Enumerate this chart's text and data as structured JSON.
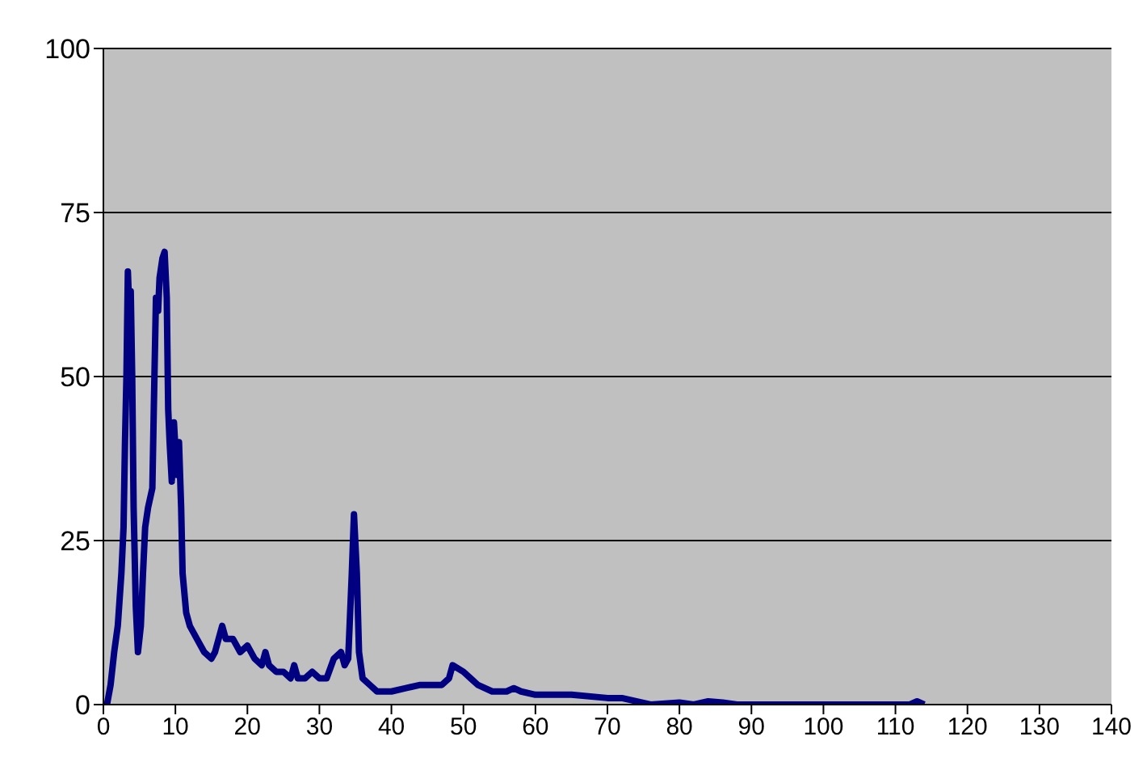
{
  "chart_data": {
    "type": "line",
    "x": [
      0.5,
      1,
      1.5,
      2,
      2.5,
      2.8,
      3,
      3.2,
      3.4,
      3.6,
      3.8,
      4,
      4.2,
      4.5,
      4.8,
      5.2,
      5.5,
      5.8,
      6.2,
      6.8,
      7,
      7.3,
      7.6,
      7.8,
      8.2,
      8.5,
      8.8,
      9,
      9.2,
      9.5,
      9.8,
      10.2,
      10.5,
      10.8,
      11,
      11.5,
      12,
      13,
      14,
      15,
      15.5,
      16,
      16.5,
      17,
      18,
      19,
      20,
      21,
      22,
      22.5,
      23,
      24,
      25,
      26,
      26.5,
      27,
      28,
      29,
      30,
      31,
      32,
      33,
      33.5,
      34,
      34.5,
      34.8,
      35.2,
      35.5,
      36,
      37,
      38,
      40,
      42,
      44,
      46,
      47,
      48,
      48.5,
      50,
      51,
      52,
      54,
      56,
      57,
      58,
      60,
      65,
      70,
      72,
      74,
      76,
      80,
      82,
      84,
      86,
      88,
      112,
      113,
      114
    ],
    "series": [
      {
        "color": "#000080",
        "values": [
          0,
          3,
          8,
          12,
          20,
          27,
          40,
          50,
          66,
          60,
          63,
          50,
          30,
          15,
          8,
          12,
          20,
          27,
          30,
          33,
          45,
          62,
          60,
          65,
          68,
          69,
          62,
          45,
          40,
          34,
          43,
          35,
          40,
          30,
          20,
          14,
          12,
          10,
          8,
          7,
          8,
          10,
          12,
          10,
          10,
          8,
          9,
          7,
          6,
          8,
          6,
          5,
          5,
          4,
          6,
          4,
          4,
          5,
          4,
          4,
          7,
          8,
          6,
          7,
          20,
          29,
          20,
          8,
          4,
          3,
          2,
          2,
          2.5,
          3,
          3,
          3,
          4,
          6,
          5,
          4,
          3,
          2,
          2,
          2.5,
          2,
          1.5,
          1.5,
          1,
          1,
          0.5,
          0,
          0.3,
          0,
          0.5,
          0.3,
          0,
          0,
          0.5,
          0
        ]
      }
    ],
    "xlim": [
      0,
      140
    ],
    "xticks": [
      0,
      10,
      20,
      30,
      40,
      50,
      60,
      70,
      80,
      90,
      100,
      110,
      120,
      130,
      140
    ],
    "ylim": [
      0,
      100
    ],
    "yticks": [
      0,
      25,
      50,
      75,
      100
    ],
    "grid": "y",
    "marker": "none",
    "line_style": "solid",
    "legend": false
  }
}
